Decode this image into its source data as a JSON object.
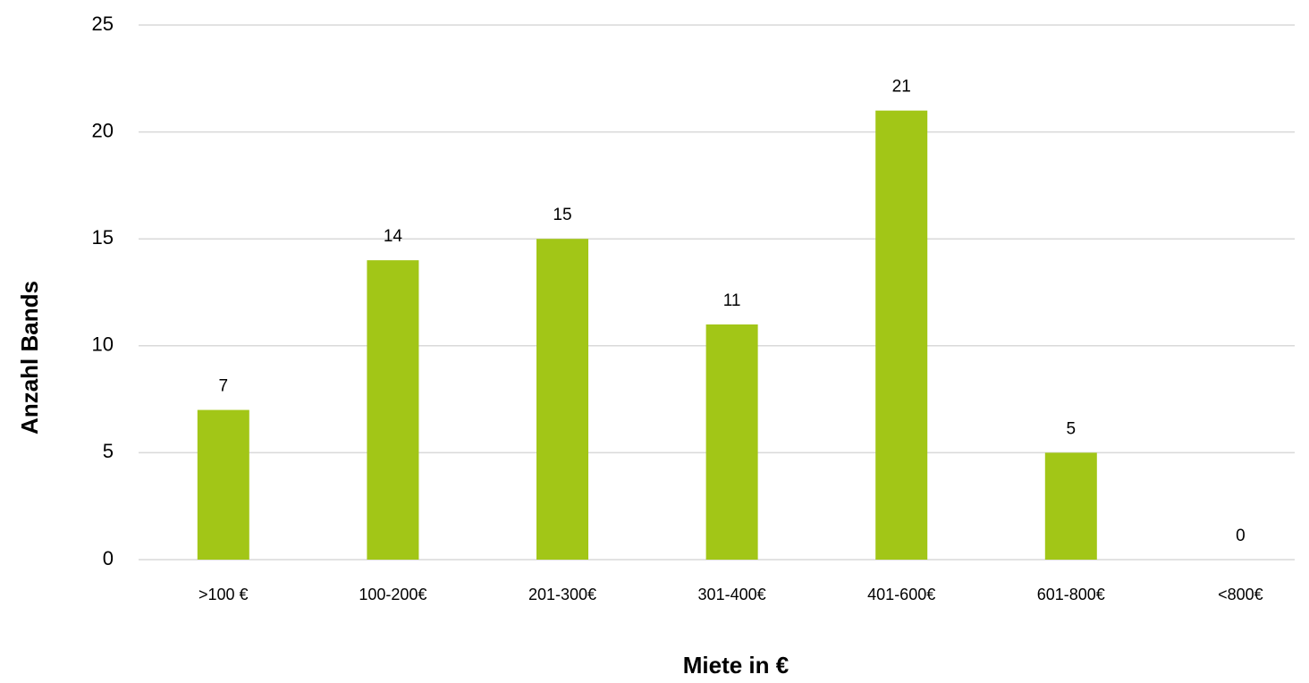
{
  "chart_data": {
    "type": "bar",
    "x_label": "Miete in €",
    "y_label": "Anzahl Bands",
    "categories": [
      ">100 €",
      "100-200€",
      "201-300€",
      "301-400€",
      "401-600€",
      "601-800€",
      "<800€"
    ],
    "values": [
      7,
      14,
      15,
      11,
      21,
      5,
      0
    ],
    "color": "#a2c617",
    "ylim": [
      0,
      25
    ],
    "yticks": [
      0,
      5,
      10,
      15,
      20,
      25
    ],
    "grid": true,
    "data_labels": true
  }
}
